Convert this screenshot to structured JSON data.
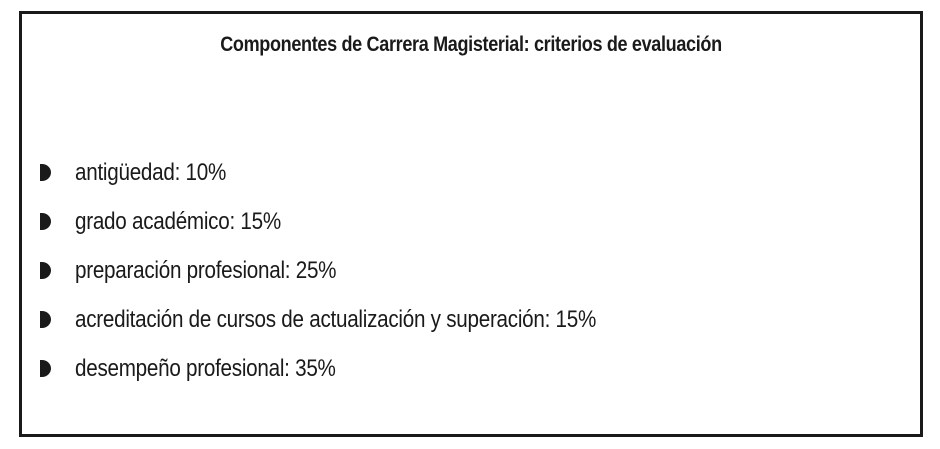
{
  "box": {
    "title": "Componentes de Carrera Magisterial: criterios de evaluación",
    "items": [
      {
        "label": "antigüedad: 10%"
      },
      {
        "label": "grado académico: 15%"
      },
      {
        "label": "preparación profesional: 25%"
      },
      {
        "label": "acreditación de cursos de actualización y superación: 15%"
      },
      {
        "label": "desempeño profesional: 35%"
      }
    ],
    "bullet_icon": "half-circle-bullet-icon",
    "border_color": "#1a1a1a",
    "text_color": "#1a1a1a"
  }
}
